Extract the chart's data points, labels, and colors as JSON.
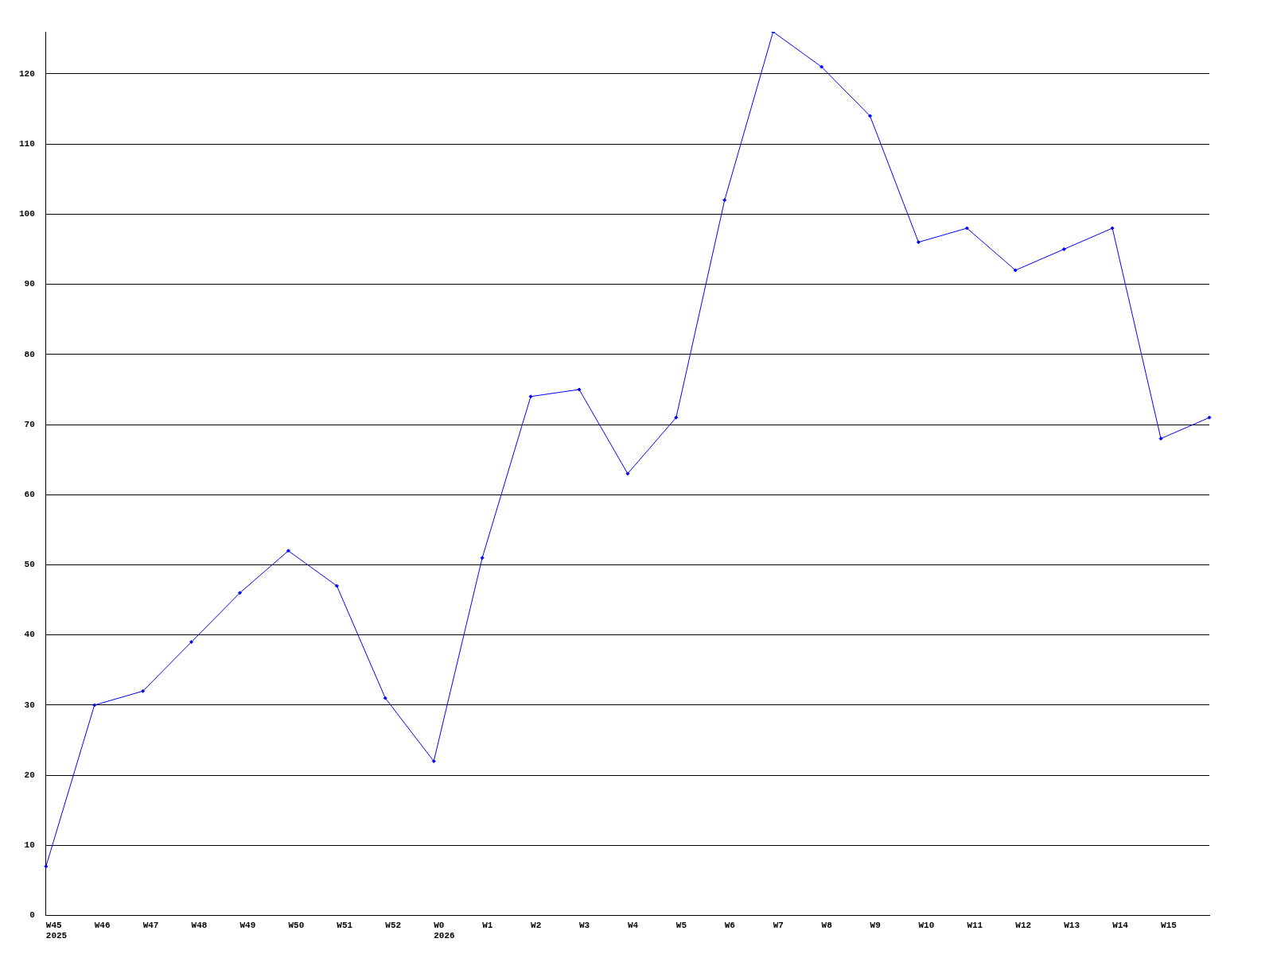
{
  "chart_data": {
    "type": "line",
    "categories": [
      "W45\n2025",
      "W46",
      "W47",
      "W48",
      "W49",
      "W50",
      "W51",
      "W52",
      "W0\n2026",
      "W1",
      "W2",
      "W3",
      "W4",
      "W5",
      "W6",
      "W7",
      "W8",
      "W9",
      "W10",
      "W11",
      "W12",
      "W13",
      "W14",
      "W15",
      null
    ],
    "series": [
      {
        "color": "#0000ff",
        "values": [
          7,
          30,
          32,
          39,
          46,
          52,
          47,
          31,
          22,
          51,
          74,
          75,
          63,
          71,
          102,
          126,
          121,
          114,
          96,
          98,
          92,
          95,
          98,
          68,
          71
        ]
      }
    ],
    "ylim": [
      0,
      126
    ],
    "yticks": [
      0,
      10,
      20,
      30,
      40,
      50,
      60,
      70,
      80,
      90,
      100,
      110,
      120
    ],
    "grid": "y",
    "legend": false,
    "marker": "diamond",
    "line_style": "solid"
  }
}
